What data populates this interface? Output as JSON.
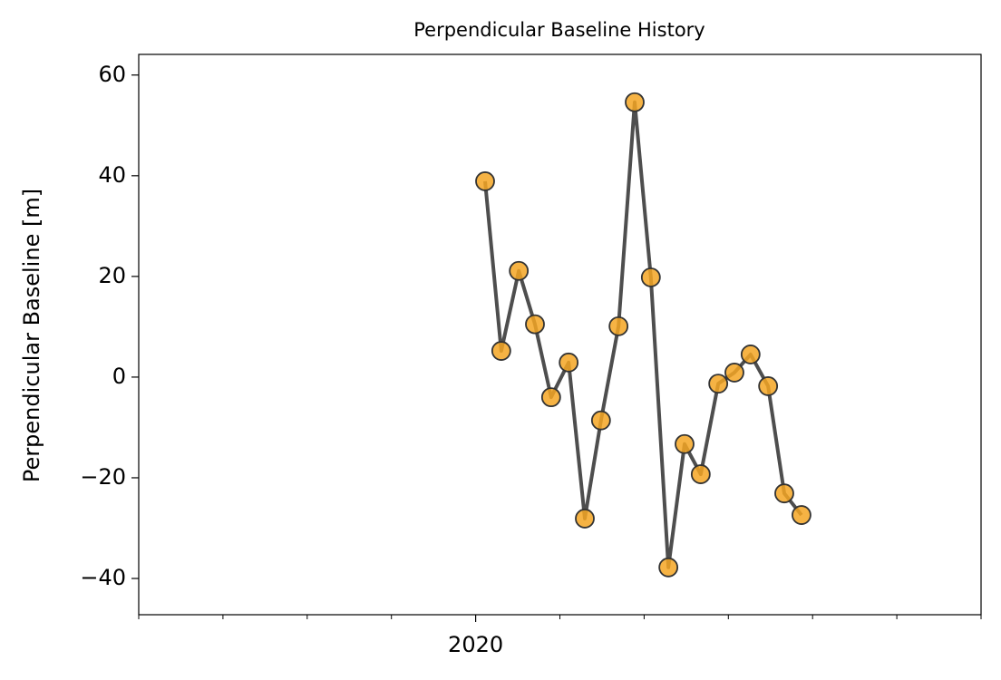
{
  "chart_data": {
    "type": "line",
    "title": "Perpendicular Baseline History",
    "ylabel": "Perpendicular Baseline [m]",
    "x": [
      2020.028,
      2020.076,
      2020.128,
      2020.176,
      2020.224,
      2020.276,
      2020.324,
      2020.372,
      2020.424,
      2020.472,
      2020.52,
      2020.572,
      2020.62,
      2020.668,
      2020.72,
      2020.768,
      2020.816,
      2020.868,
      2020.916,
      2020.967
    ],
    "series": [
      {
        "color": "#f5a623",
        "line_color": "#444444",
        "values": [
          38.9,
          5.2,
          21.1,
          10.5,
          -4.0,
          2.9,
          -28.1,
          -8.6,
          10.1,
          54.6,
          19.8,
          -37.8,
          -13.3,
          -19.3,
          -1.3,
          0.9,
          4.5,
          -1.8,
          -23.1,
          -27.4
        ]
      }
    ],
    "xlim": [
      2019.0,
      2021.5
    ],
    "xticks": [
      2020
    ],
    "xminorticks": [
      2019.0,
      2019.25,
      2019.5,
      2019.75,
      2020.25,
      2020.5,
      2020.75,
      2021.0,
      2021.25,
      2021.5
    ],
    "ylim": [
      -47.2,
      64.1
    ],
    "yticks": [
      {
        "value": -40,
        "label": "−40"
      },
      {
        "value": -20,
        "label": "−20"
      },
      0,
      20,
      40,
      60
    ],
    "grid": false
  }
}
